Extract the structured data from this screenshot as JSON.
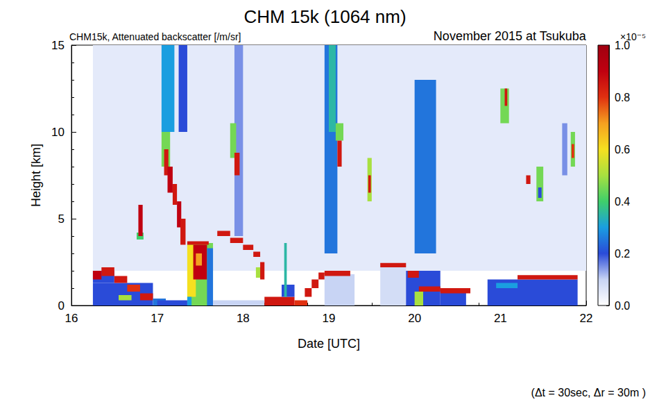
{
  "chart_data": {
    "type": "heatmap",
    "title": "CHM 15k (1064 nm)",
    "subtitle": "CHM15k, Attenuated backscatter [/m/sr]",
    "annotations": [
      "November 2015 at Tsukuba",
      "(Δt = 30sec, Δr = 30m )"
    ],
    "x_label": "Date [UTC]",
    "y_label": "Height [km]",
    "xlim": [
      16,
      22
    ],
    "xticks": [
      16,
      17,
      18,
      19,
      20,
      21,
      22
    ],
    "ylim": [
      0,
      15
    ],
    "yticks": [
      0,
      5,
      10,
      15
    ],
    "colorbar_label": "×10⁻⁵",
    "colorbar_lim": [
      0,
      1
    ],
    "colorbar_ticks": [
      {
        "value": 0,
        "label": "0.0"
      },
      {
        "value": 0.2,
        "label": "0.2"
      },
      {
        "value": 0.4,
        "label": "0.4"
      },
      {
        "value": 0.6,
        "label": "0.6"
      },
      {
        "value": 0.8,
        "label": "0.8"
      },
      {
        "value": 1,
        "label": "1.0"
      }
    ],
    "cells": [
      [
        16.25,
        22,
        2,
        15,
        0.05
      ],
      [
        17.05,
        17.2,
        10,
        15,
        0.3
      ],
      [
        17.25,
        17.35,
        10,
        15,
        0.2
      ],
      [
        17.9,
        18.0,
        4,
        15,
        0.15
      ],
      [
        18.95,
        19.1,
        3,
        15,
        0.25
      ],
      [
        19.0,
        19.08,
        10,
        15,
        0.35
      ],
      [
        20.0,
        20.25,
        3,
        13,
        0.25
      ],
      [
        16.25,
        16.95,
        0,
        1.3,
        0.2
      ],
      [
        16.25,
        16.5,
        1.3,
        2.0,
        0.2
      ],
      [
        16.25,
        16.35,
        1.5,
        2.0,
        0.9
      ],
      [
        16.35,
        16.5,
        1.7,
        2.2,
        0.85
      ],
      [
        16.5,
        16.65,
        1.3,
        1.7,
        0.85
      ],
      [
        16.65,
        16.8,
        0.8,
        1.2,
        0.8
      ],
      [
        16.8,
        16.95,
        0.3,
        0.7,
        0.85
      ],
      [
        16.55,
        16.7,
        0.3,
        0.6,
        0.5
      ],
      [
        16.95,
        17.1,
        0,
        0.4,
        0.25
      ],
      [
        17.0,
        17.35,
        0,
        0.3,
        0.2
      ],
      [
        16.76,
        16.84,
        3.8,
        4.2,
        0.4
      ],
      [
        16.78,
        16.83,
        4,
        5.8,
        0.9
      ],
      [
        17.05,
        17.15,
        8,
        10,
        0.45
      ],
      [
        17.08,
        17.13,
        7.5,
        9,
        0.85
      ],
      [
        17.12,
        17.18,
        6.5,
        8,
        0.9
      ],
      [
        17.18,
        17.23,
        5.8,
        7,
        0.85
      ],
      [
        17.23,
        17.28,
        4.5,
        6,
        0.9
      ],
      [
        17.27,
        17.33,
        3.5,
        5,
        0.85
      ],
      [
        17.35,
        17.65,
        0,
        3.6,
        0.45
      ],
      [
        17.35,
        17.45,
        0.5,
        3.5,
        0.6
      ],
      [
        17.42,
        17.58,
        1.5,
        3.5,
        0.9
      ],
      [
        17.45,
        17.52,
        2.3,
        3.0,
        0.7
      ],
      [
        17.58,
        17.65,
        0,
        3.3,
        0.25
      ],
      [
        17.35,
        17.6,
        3.5,
        3.7,
        0.85
      ],
      [
        17.35,
        17.4,
        0,
        0.5,
        0.3
      ],
      [
        17.65,
        18.25,
        0,
        0.3,
        0.1
      ],
      [
        17.7,
        17.85,
        4.0,
        4.3,
        0.85
      ],
      [
        17.85,
        18.0,
        3.6,
        3.9,
        0.85
      ],
      [
        18.0,
        18.12,
        3.2,
        3.5,
        0.85
      ],
      [
        18.12,
        18.2,
        2.8,
        3.1,
        0.85
      ],
      [
        17.85,
        17.92,
        8.5,
        10.5,
        0.45
      ],
      [
        17.9,
        17.96,
        7.5,
        8.8,
        0.85
      ],
      [
        18.15,
        18.22,
        1.6,
        2.2,
        0.5
      ],
      [
        18.2,
        18.25,
        1.5,
        2.5,
        0.85
      ],
      [
        18.25,
        18.6,
        0,
        0.5,
        0.85
      ],
      [
        18.6,
        18.75,
        0,
        0.3,
        0.8
      ],
      [
        18.45,
        18.6,
        0.5,
        1.2,
        0.2
      ],
      [
        18.48,
        18.51,
        0.5,
        3.6,
        0.35
      ],
      [
        18.72,
        18.8,
        0.5,
        1.0,
        0.85
      ],
      [
        18.8,
        18.88,
        1.0,
        1.5,
        0.85
      ],
      [
        18.88,
        18.95,
        1.5,
        1.9,
        0.85
      ],
      [
        18.95,
        19.3,
        0,
        1.8,
        0.1
      ],
      [
        18.95,
        19.25,
        1.7,
        2.0,
        0.85
      ],
      [
        19.08,
        19.17,
        9.5,
        10.5,
        0.45
      ],
      [
        19.1,
        19.15,
        8,
        9.5,
        0.85
      ],
      [
        19.45,
        19.5,
        6,
        8.5,
        0.5
      ],
      [
        19.46,
        19.49,
        6.5,
        7.5,
        0.85
      ],
      [
        19.6,
        19.9,
        0,
        2.2,
        0.08
      ],
      [
        19.6,
        19.9,
        2.2,
        2.45,
        0.85
      ],
      [
        19.9,
        20.3,
        0,
        2.0,
        0.2
      ],
      [
        19.92,
        20.05,
        1.6,
        2.0,
        0.85
      ],
      [
        20.05,
        20.3,
        0.8,
        1.1,
        0.85
      ],
      [
        20.0,
        20.1,
        0,
        0.8,
        0.5
      ],
      [
        20.3,
        20.6,
        0,
        0.8,
        0.2
      ],
      [
        20.3,
        20.65,
        0.7,
        1.0,
        0.85
      ],
      [
        21.0,
        21.1,
        10.5,
        12.5,
        0.45
      ],
      [
        21.05,
        21.08,
        11.5,
        12.5,
        0.85
      ],
      [
        21.3,
        21.35,
        7,
        7.5,
        0.85
      ],
      [
        21.42,
        21.5,
        6,
        8,
        0.45
      ],
      [
        21.44,
        21.48,
        6.2,
        6.8,
        0.2
      ],
      [
        21.72,
        21.78,
        7.5,
        10.5,
        0.15
      ],
      [
        21.82,
        21.87,
        8,
        10,
        0.45
      ],
      [
        21.83,
        21.86,
        8.5,
        9.3,
        0.8
      ],
      [
        20.85,
        21.9,
        0,
        1.5,
        0.2
      ],
      [
        20.95,
        21.2,
        1.0,
        1.3,
        0.3
      ],
      [
        21.2,
        21.9,
        1.5,
        1.75,
        0.85
      ]
    ]
  }
}
